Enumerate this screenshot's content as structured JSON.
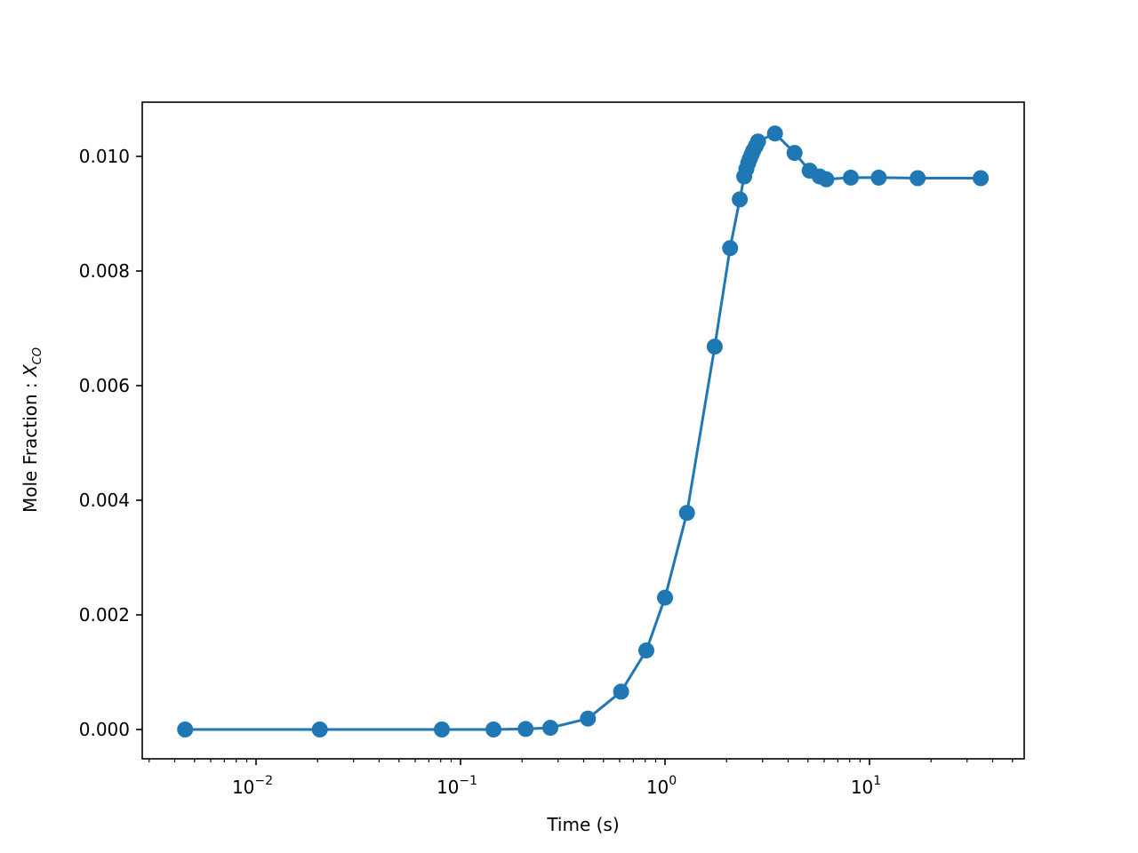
{
  "chart_data": {
    "type": "line",
    "title": "",
    "xlabel": "Time (s)",
    "ylabel": "Mole Fraction : X_CO",
    "ylabel_main": "Mole Fraction : ",
    "ylabel_var": "X",
    "ylabel_sub": "CO",
    "xscale": "log",
    "xlim": [
      0.0028,
      55
    ],
    "ylim": [
      -0.0005,
      0.0109
    ],
    "grid": false,
    "legend": null,
    "color": "#1f77b4",
    "marker": "circle",
    "x_ticks": [
      {
        "value": 0.01,
        "base": "10",
        "exp": "−2"
      },
      {
        "value": 0.1,
        "base": "10",
        "exp": "−1"
      },
      {
        "value": 1,
        "base": "10",
        "exp": "0"
      },
      {
        "value": 10,
        "base": "10",
        "exp": "1"
      }
    ],
    "y_ticks": [
      {
        "value": 0.0,
        "label": "0.000"
      },
      {
        "value": 0.002,
        "label": "0.002"
      },
      {
        "value": 0.004,
        "label": "0.004"
      },
      {
        "value": 0.006,
        "label": "0.006"
      },
      {
        "value": 0.008,
        "label": "0.008"
      },
      {
        "value": 0.01,
        "label": "0.010"
      }
    ],
    "series": [
      {
        "name": "X_CO",
        "x": [
          0.0045,
          0.0205,
          0.081,
          0.145,
          0.208,
          0.275,
          0.42,
          0.61,
          0.81,
          1.0,
          1.28,
          1.75,
          2.08,
          2.32,
          2.44,
          2.5,
          2.55,
          2.6,
          2.65,
          2.7,
          2.78,
          2.85,
          3.45,
          4.3,
          5.1,
          5.7,
          6.15,
          8.1,
          11.1,
          17.2,
          35.0
        ],
        "y": [
          0.0,
          0.0,
          0.0,
          0.0,
          1e-05,
          3e-05,
          0.00019,
          0.00066,
          0.00138,
          0.0023,
          0.00378,
          0.00668,
          0.0084,
          0.00925,
          0.00965,
          0.00978,
          0.00988,
          0.00996,
          0.01003,
          0.0101,
          0.01018,
          0.01026,
          0.0104,
          0.01006,
          0.00975,
          0.00965,
          0.0096,
          0.00963,
          0.00963,
          0.00962,
          0.00962
        ]
      }
    ]
  }
}
